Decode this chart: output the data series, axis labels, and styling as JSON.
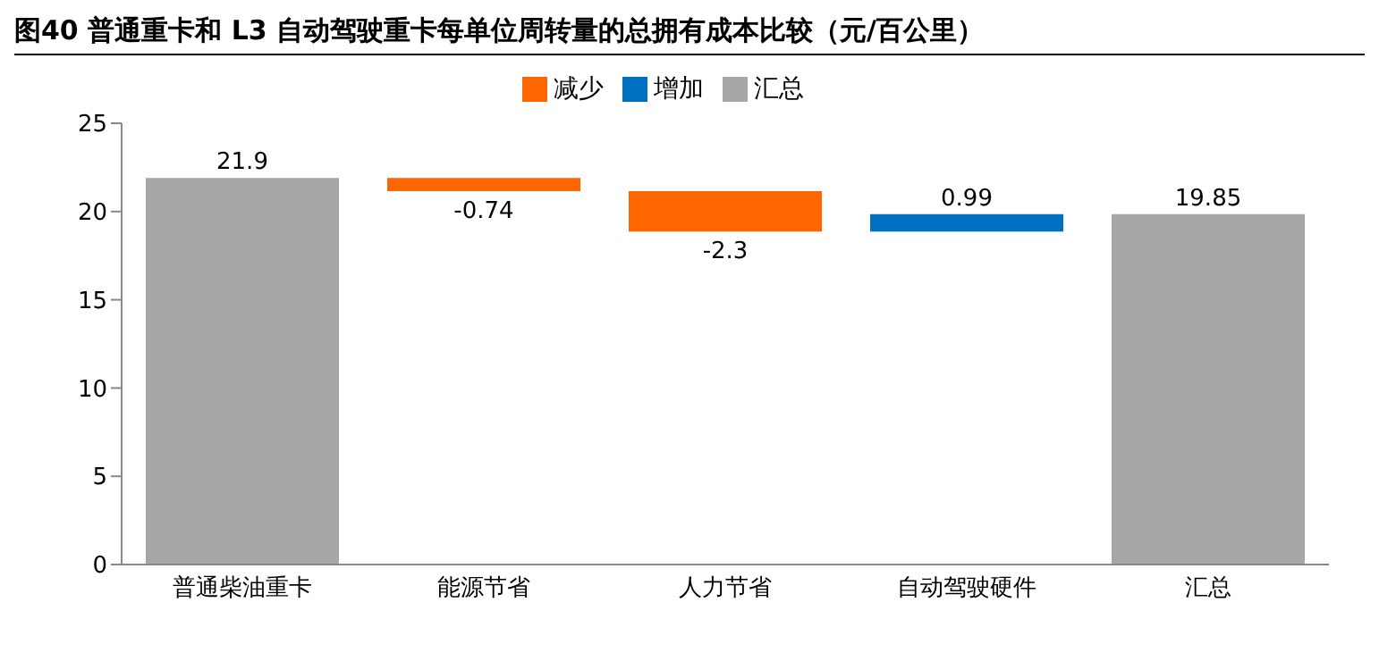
{
  "chart_data": {
    "type": "bar",
    "title": "图40 普通重卡和 L3 自动驾驶重卡每单位周转量的总拥有成本比较（元/百公里）",
    "categories": [
      "普通柴油重卡",
      "能源节省",
      "人力节省",
      "自动驾驶硬件",
      "汇总"
    ],
    "series": [
      {
        "name": "增加",
        "color": "#0070c0",
        "values": [
          null,
          null,
          null,
          0.99,
          null
        ],
        "base": [
          null,
          null,
          null,
          18.86,
          null
        ]
      },
      {
        "name": "减少",
        "color": "#ff6600",
        "values": [
          null,
          -0.74,
          -2.3,
          null,
          null
        ],
        "base": [
          null,
          21.9,
          21.16,
          null,
          null
        ]
      },
      {
        "name": "汇总",
        "color": "#a6a6a6",
        "values": [
          21.9,
          null,
          null,
          null,
          19.85
        ],
        "base": [
          0,
          null,
          null,
          null,
          0
        ]
      }
    ],
    "ylim": [
      0,
      25
    ],
    "yticks": [
      0,
      5,
      10,
      15,
      20,
      25
    ],
    "grid": false,
    "legend": "top",
    "data_labels": true
  }
}
